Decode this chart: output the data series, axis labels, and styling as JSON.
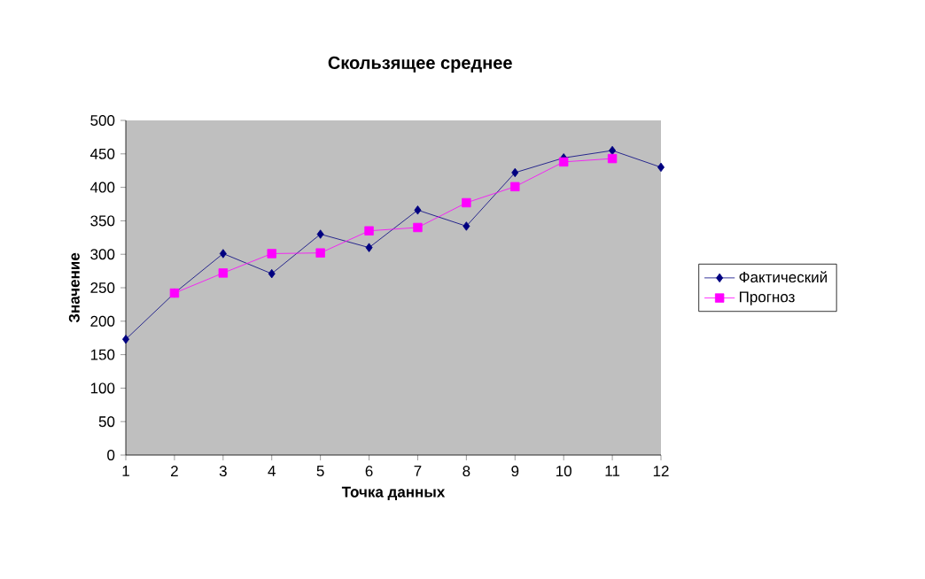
{
  "chart_data": {
    "type": "line",
    "title": "Скользящее среднее",
    "xlabel": "Точка данных",
    "ylabel": "Значение",
    "x": [
      1,
      2,
      3,
      4,
      5,
      6,
      7,
      8,
      9,
      10,
      11,
      12
    ],
    "series": [
      {
        "name": "Фактический",
        "color": "#000080",
        "marker": "diamond",
        "values": [
          173,
          242,
          301,
          271,
          330,
          310,
          366,
          342,
          422,
          444,
          455,
          430
        ]
      },
      {
        "name": "Прогноз",
        "color": "#ff00ff",
        "marker": "square",
        "values": [
          null,
          242,
          272,
          301,
          302,
          335,
          340,
          377,
          401,
          438,
          443,
          null
        ]
      }
    ],
    "xlim": [
      1,
      12
    ],
    "xticks": [
      1,
      2,
      3,
      4,
      5,
      6,
      7,
      8,
      9,
      10,
      11,
      12
    ],
    "ylim": [
      0,
      500
    ],
    "yticks": [
      0,
      50,
      100,
      150,
      200,
      250,
      300,
      350,
      400,
      450,
      500
    ],
    "grid": false,
    "legend": "right"
  }
}
